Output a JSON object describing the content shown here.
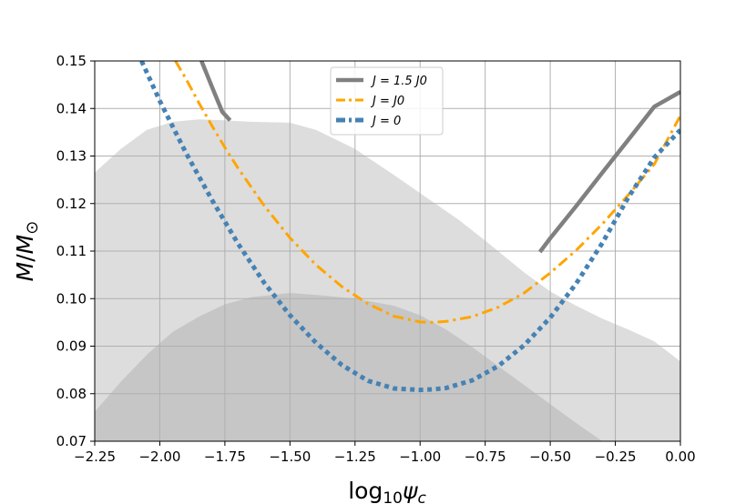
{
  "chart_data": {
    "type": "line",
    "xlabel": "log₁₀ψc",
    "ylabel": "M/M⊙",
    "xlim": [
      -2.25,
      0.0
    ],
    "ylim": [
      0.07,
      0.15
    ],
    "grid": true,
    "x_ticks": [
      -2.25,
      -2.0,
      -1.75,
      -1.5,
      -1.25,
      -1.0,
      -0.75,
      -0.5,
      -0.25,
      0.0
    ],
    "x_tick_labels": [
      "−2.25",
      "−2.00",
      "−1.75",
      "−1.50",
      "−1.25",
      "−1.00",
      "−0.75",
      "−0.50",
      "−0.25",
      "0.00"
    ],
    "y_ticks": [
      0.07,
      0.08,
      0.09,
      0.1,
      0.11,
      0.12,
      0.13,
      0.14,
      0.15
    ],
    "y_tick_labels": [
      "0.07",
      "0.08",
      "0.09",
      "0.10",
      "0.11",
      "0.12",
      "0.13",
      "0.14",
      "0.15"
    ],
    "legend_position": "top-center",
    "series": [
      {
        "name": "J = 1.5 J0",
        "color": "#808080",
        "style": "solid",
        "segments": [
          [
            [
              -1.84,
              0.15
            ],
            [
              -1.8,
              0.1446
            ],
            [
              -1.76,
              0.1393
            ],
            [
              -1.73,
              0.1375
            ]
          ],
          [
            [
              -0.54,
              0.1098
            ],
            [
              -0.5,
              0.1127
            ],
            [
              -0.4,
              0.1195
            ],
            [
              -0.3,
              0.1265
            ],
            [
              -0.2,
              0.1334
            ],
            [
              -0.1,
              0.1404
            ],
            [
              0.0,
              0.1435
            ]
          ]
        ]
      },
      {
        "name": "J = J0",
        "color": "#ffa500",
        "style": "dashdot",
        "points": [
          [
            -1.94,
            0.15
          ],
          [
            -1.9,
            0.1463
          ],
          [
            -1.85,
            0.1412
          ],
          [
            -1.8,
            0.1364
          ],
          [
            -1.75,
            0.1318
          ],
          [
            -1.7,
            0.1275
          ],
          [
            -1.6,
            0.1196
          ],
          [
            -1.5,
            0.1128
          ],
          [
            -1.4,
            0.1071
          ],
          [
            -1.3,
            0.1025
          ],
          [
            -1.2,
            0.0989
          ],
          [
            -1.1,
            0.0963
          ],
          [
            -1.0,
            0.0951
          ],
          [
            -0.95,
            0.095
          ],
          [
            -0.9,
            0.0952
          ],
          [
            -0.8,
            0.0962
          ],
          [
            -0.7,
            0.0982
          ],
          [
            -0.6,
            0.1012
          ],
          [
            -0.5,
            0.1054
          ],
          [
            -0.4,
            0.1102
          ],
          [
            -0.3,
            0.1157
          ],
          [
            -0.2,
            0.1218
          ],
          [
            -0.1,
            0.1283
          ],
          [
            0.0,
            0.1385
          ]
        ]
      },
      {
        "name": "J = 0",
        "color": "#4682b4",
        "style": "dotted",
        "points": [
          [
            -2.07,
            0.15
          ],
          [
            -2.0,
            0.1416
          ],
          [
            -1.9,
            0.1307
          ],
          [
            -1.8,
            0.1208
          ],
          [
            -1.7,
            0.1116
          ],
          [
            -1.6,
            0.1034
          ],
          [
            -1.5,
            0.0965
          ],
          [
            -1.4,
            0.0907
          ],
          [
            -1.3,
            0.086
          ],
          [
            -1.2,
            0.0827
          ],
          [
            -1.1,
            0.0811
          ],
          [
            -1.0,
            0.0808
          ],
          [
            -0.95,
            0.0809
          ],
          [
            -0.9,
            0.0812
          ],
          [
            -0.8,
            0.0828
          ],
          [
            -0.7,
            0.0858
          ],
          [
            -0.6,
            0.0902
          ],
          [
            -0.5,
            0.096
          ],
          [
            -0.4,
            0.1032
          ],
          [
            -0.3,
            0.1117
          ],
          [
            -0.2,
            0.1213
          ],
          [
            -0.1,
            0.1297
          ],
          [
            0.0,
            0.1355
          ]
        ]
      }
    ],
    "bands": [
      {
        "name": "outer-band",
        "color": "#dddddd",
        "upper": [
          [
            -2.25,
            0.1265
          ],
          [
            -2.15,
            0.1315
          ],
          [
            -2.05,
            0.1355
          ],
          [
            -1.95,
            0.1372
          ],
          [
            -1.85,
            0.1377
          ],
          [
            -1.75,
            0.1375
          ],
          [
            -1.65,
            0.1372
          ],
          [
            -1.5,
            0.137
          ],
          [
            -1.4,
            0.1355
          ],
          [
            -1.25,
            0.1315
          ],
          [
            -1.1,
            0.126
          ],
          [
            -1.0,
            0.1222
          ],
          [
            -0.85,
            0.1165
          ],
          [
            -0.75,
            0.1122
          ],
          [
            -0.6,
            0.1055
          ],
          [
            -0.5,
            0.1015
          ],
          [
            -0.4,
            0.0985
          ],
          [
            -0.3,
            0.0958
          ],
          [
            -0.2,
            0.0935
          ],
          [
            -0.1,
            0.091
          ],
          [
            0.0,
            0.0868
          ]
        ]
      },
      {
        "name": "inner-band",
        "color": "#c6c6c6",
        "upper": [
          [
            -2.25,
            0.0762
          ],
          [
            -2.15,
            0.0825
          ],
          [
            -2.05,
            0.0882
          ],
          [
            -1.95,
            0.093
          ],
          [
            -1.85,
            0.0962
          ],
          [
            -1.75,
            0.0988
          ],
          [
            -1.65,
            0.1003
          ],
          [
            -1.5,
            0.1012
          ],
          [
            -1.4,
            0.1008
          ],
          [
            -1.25,
            0.1
          ],
          [
            -1.1,
            0.0985
          ],
          [
            -1.0,
            0.0965
          ],
          [
            -0.9,
            0.0935
          ],
          [
            -0.8,
            0.0898
          ],
          [
            -0.7,
            0.0858
          ],
          [
            -0.6,
            0.0818
          ],
          [
            -0.5,
            0.0778
          ],
          [
            -0.4,
            0.0738
          ],
          [
            -0.3,
            0.07
          ]
        ]
      }
    ]
  }
}
